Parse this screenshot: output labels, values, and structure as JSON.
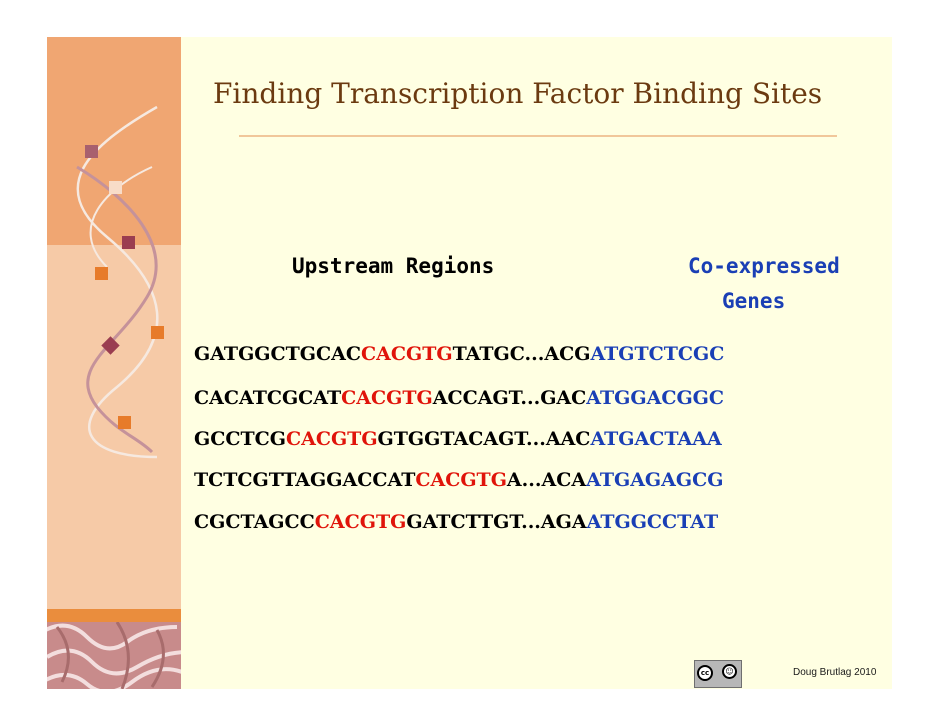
{
  "slide": {
    "title": "Finding Transcription Factor Binding Sites",
    "headers": {
      "upstream": "Upstream Regions",
      "coexpressed_line1": "Co-expressed",
      "coexpressed_line2": "Genes"
    },
    "sequences": [
      {
        "pre": "GATGGCTGCAC",
        "motif": "CACGTG",
        "post": "TATGC...ACG",
        "gene": "ATGTCTCGC"
      },
      {
        "pre": "CACATCGCAT",
        "motif": "CACGTG",
        "post": "ACCAGT...GAC",
        "gene": "ATGGACGGC"
      },
      {
        "pre": "GCCTCG",
        "motif": "CACGTG",
        "post": "GTGGTACAGT...AAC",
        "gene": "ATGACTAAA"
      },
      {
        "pre": "TCTCGTTAGGACCAT",
        "motif": "CACGTG",
        "post": "A...ACA",
        "gene": "ATGAGAGCG"
      },
      {
        "pre": "CGCTAGCC",
        "motif": "CACGTG",
        "post": "GATCTTGT...AGA",
        "gene": "ATGGCCTAT"
      }
    ],
    "license_badge": {
      "cc": "cc",
      "by": "BY"
    },
    "credit": "Doug Brutlag 2010"
  },
  "colors": {
    "motif": "#e0140a",
    "gene": "#1a3fb5",
    "title": "#6b3a10",
    "background": "#ffffe2"
  },
  "icons": [
    "creative-commons-icon",
    "attribution-icon"
  ]
}
